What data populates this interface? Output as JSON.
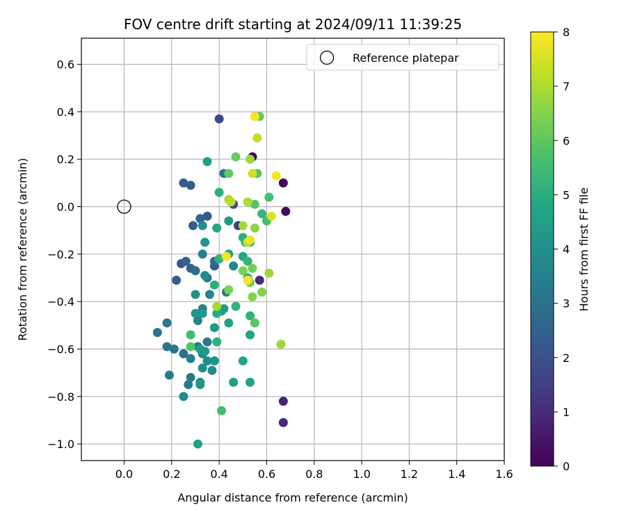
{
  "chart_data": {
    "type": "scatter",
    "title": "FOV centre drift starting at 2024/09/11 11:39:25",
    "xlabel": "Angular distance from reference (arcmin)",
    "ylabel": "Rotation from reference (arcmin)",
    "xlim": [
      -0.18,
      1.6
    ],
    "ylim": [
      -1.07,
      0.71
    ],
    "x_ticks": [
      "0.0",
      "0.2",
      "0.4",
      "0.6",
      "0.8",
      "1.0",
      "1.2",
      "1.4",
      "1.6"
    ],
    "y_ticks": [
      "0.6",
      "0.4",
      "0.2",
      "0.0",
      "−0.2",
      "−0.4",
      "−0.6",
      "−0.8",
      "−1.0"
    ],
    "grid": true,
    "legend": {
      "placement": "upper right",
      "entries": [
        "Reference platepar"
      ]
    },
    "reference_point": {
      "x": 0.0,
      "y": 0.0
    },
    "colorbar": {
      "label": "Hours from first FF file",
      "colormap": "viridis",
      "range": [
        0,
        8
      ],
      "ticks": [
        "0",
        "1",
        "2",
        "3",
        "4",
        "5",
        "6",
        "7",
        "8"
      ]
    },
    "points": [
      {
        "x": 0.54,
        "y": 0.21,
        "c": 0.1
      },
      {
        "x": 0.67,
        "y": 0.1,
        "c": 0.1
      },
      {
        "x": 0.68,
        "y": -0.02,
        "c": 0.2
      },
      {
        "x": 0.67,
        "y": -0.82,
        "c": 0.8
      },
      {
        "x": 0.67,
        "y": -0.91,
        "c": 0.9
      },
      {
        "x": 0.57,
        "y": -0.31,
        "c": 1.0
      },
      {
        "x": 0.4,
        "y": 0.37,
        "c": 1.8
      },
      {
        "x": 0.46,
        "y": 0.01,
        "c": 1.8
      },
      {
        "x": 0.48,
        "y": -0.08,
        "c": 1.5
      },
      {
        "x": 0.25,
        "y": 0.1,
        "c": 2.3
      },
      {
        "x": 0.28,
        "y": 0.09,
        "c": 2.4
      },
      {
        "x": 0.35,
        "y": -0.04,
        "c": 2.2
      },
      {
        "x": 0.29,
        "y": -0.08,
        "c": 2.3
      },
      {
        "x": 0.32,
        "y": -0.05,
        "c": 2.6
      },
      {
        "x": 0.24,
        "y": -0.24,
        "c": 2.2
      },
      {
        "x": 0.26,
        "y": -0.23,
        "c": 2.5
      },
      {
        "x": 0.28,
        "y": -0.26,
        "c": 2.6
      },
      {
        "x": 0.22,
        "y": -0.31,
        "c": 2.5
      },
      {
        "x": 0.3,
        "y": -0.27,
        "c": 2.8
      },
      {
        "x": 0.38,
        "y": -0.25,
        "c": 2.4
      },
      {
        "x": 0.38,
        "y": -0.23,
        "c": 2.9
      },
      {
        "x": 0.4,
        "y": -0.22,
        "c": 2.6
      },
      {
        "x": 0.42,
        "y": 0.14,
        "c": 3.1
      },
      {
        "x": 0.14,
        "y": -0.53,
        "c": 3.0
      },
      {
        "x": 0.18,
        "y": -0.49,
        "c": 3.2
      },
      {
        "x": 0.18,
        "y": -0.59,
        "c": 3.0
      },
      {
        "x": 0.21,
        "y": -0.6,
        "c": 3.1
      },
      {
        "x": 0.25,
        "y": -0.62,
        "c": 3.0
      },
      {
        "x": 0.19,
        "y": -0.71,
        "c": 3.3
      },
      {
        "x": 0.28,
        "y": -0.64,
        "c": 3.4
      },
      {
        "x": 0.28,
        "y": -0.72,
        "c": 3.3
      },
      {
        "x": 0.27,
        "y": -0.75,
        "c": 3.2
      },
      {
        "x": 0.25,
        "y": -0.8,
        "c": 3.7
      },
      {
        "x": 0.31,
        "y": -0.59,
        "c": 3.2
      },
      {
        "x": 0.35,
        "y": -0.57,
        "c": 3.3
      },
      {
        "x": 0.35,
        "y": -0.3,
        "c": 3.2
      },
      {
        "x": 0.33,
        "y": -0.2,
        "c": 3.5
      },
      {
        "x": 0.31,
        "y": -0.48,
        "c": 3.6
      },
      {
        "x": 0.33,
        "y": -0.43,
        "c": 3.5
      },
      {
        "x": 0.36,
        "y": -0.37,
        "c": 3.6
      },
      {
        "x": 0.34,
        "y": -0.29,
        "c": 3.8
      },
      {
        "x": 0.43,
        "y": -0.36,
        "c": 3.5
      },
      {
        "x": 0.46,
        "y": -0.25,
        "c": 3.7
      },
      {
        "x": 0.33,
        "y": -0.62,
        "c": 3.8
      },
      {
        "x": 0.33,
        "y": -0.68,
        "c": 3.9
      },
      {
        "x": 0.35,
        "y": -0.65,
        "c": 4.0
      },
      {
        "x": 0.37,
        "y": -0.69,
        "c": 3.9
      },
      {
        "x": 0.32,
        "y": -0.74,
        "c": 4.0
      },
      {
        "x": 0.32,
        "y": -0.75,
        "c": 4.2
      },
      {
        "x": 0.38,
        "y": -0.65,
        "c": 4.1
      },
      {
        "x": 0.33,
        "y": -0.08,
        "c": 3.9
      },
      {
        "x": 0.34,
        "y": -0.15,
        "c": 4.2
      },
      {
        "x": 0.3,
        "y": -0.37,
        "c": 4.1
      },
      {
        "x": 0.3,
        "y": -0.45,
        "c": 4.2
      },
      {
        "x": 0.33,
        "y": -0.45,
        "c": 4.3
      },
      {
        "x": 0.38,
        "y": -0.51,
        "c": 4.3
      },
      {
        "x": 0.41,
        "y": -0.44,
        "c": 4.4
      },
      {
        "x": 0.44,
        "y": -0.49,
        "c": 4.6
      },
      {
        "x": 0.42,
        "y": -0.43,
        "c": 4.5
      },
      {
        "x": 0.44,
        "y": -0.2,
        "c": 4.6
      },
      {
        "x": 0.44,
        "y": -0.06,
        "c": 4.4
      },
      {
        "x": 0.39,
        "y": -0.09,
        "c": 4.8
      },
      {
        "x": 0.35,
        "y": 0.19,
        "c": 4.6
      },
      {
        "x": 0.32,
        "y": -0.6,
        "c": 4.4
      },
      {
        "x": 0.34,
        "y": -0.61,
        "c": 4.2
      },
      {
        "x": 0.31,
        "y": -1.0,
        "c": 4.6
      },
      {
        "x": 0.46,
        "y": -0.74,
        "c": 4.5
      },
      {
        "x": 0.53,
        "y": -0.74,
        "c": 4.6
      },
      {
        "x": 0.5,
        "y": -0.65,
        "c": 4.7
      },
      {
        "x": 0.53,
        "y": -0.54,
        "c": 4.7
      },
      {
        "x": 0.39,
        "y": -0.45,
        "c": 4.9
      },
      {
        "x": 0.39,
        "y": -0.57,
        "c": 5.1
      },
      {
        "x": 0.38,
        "y": -0.33,
        "c": 5.0
      },
      {
        "x": 0.4,
        "y": -0.22,
        "c": 5.2
      },
      {
        "x": 0.4,
        "y": 0.06,
        "c": 5.1
      },
      {
        "x": 0.5,
        "y": -0.21,
        "c": 4.8
      },
      {
        "x": 0.52,
        "y": -0.23,
        "c": 5.3
      },
      {
        "x": 0.52,
        "y": -0.3,
        "c": 5.0
      },
      {
        "x": 0.53,
        "y": -0.46,
        "c": 5.2
      },
      {
        "x": 0.47,
        "y": -0.42,
        "c": 5.2
      },
      {
        "x": 0.5,
        "y": -0.13,
        "c": 5.0
      },
      {
        "x": 0.51,
        "y": -0.15,
        "c": 5.4
      },
      {
        "x": 0.53,
        "y": -0.15,
        "c": 5.1
      },
      {
        "x": 0.58,
        "y": -0.03,
        "c": 5.3
      },
      {
        "x": 0.6,
        "y": -0.06,
        "c": 5.6
      },
      {
        "x": 0.61,
        "y": 0.04,
        "c": 5.6
      },
      {
        "x": 0.41,
        "y": -0.86,
        "c": 5.4
      },
      {
        "x": 0.41,
        "y": -0.86,
        "c": 5.6
      },
      {
        "x": 0.28,
        "y": -0.54,
        "c": 5.5
      },
      {
        "x": 0.28,
        "y": -0.59,
        "c": 5.8
      },
      {
        "x": 0.55,
        "y": -0.49,
        "c": 5.9
      },
      {
        "x": 0.55,
        "y": 0.01,
        "c": 5.9
      },
      {
        "x": 0.56,
        "y": 0.14,
        "c": 5.8
      },
      {
        "x": 0.57,
        "y": 0.38,
        "c": 6.0
      },
      {
        "x": 0.44,
        "y": 0.14,
        "c": 6.0
      },
      {
        "x": 0.47,
        "y": 0.21,
        "c": 6.1
      },
      {
        "x": 0.53,
        "y": -0.32,
        "c": 6.3
      },
      {
        "x": 0.54,
        "y": -0.26,
        "c": 6.3
      },
      {
        "x": 0.58,
        "y": -0.36,
        "c": 6.5
      },
      {
        "x": 0.54,
        "y": -0.38,
        "c": 6.5
      },
      {
        "x": 0.5,
        "y": -0.27,
        "c": 6.4
      },
      {
        "x": 0.44,
        "y": -0.35,
        "c": 6.4
      },
      {
        "x": 0.55,
        "y": -0.09,
        "c": 6.6
      },
      {
        "x": 0.61,
        "y": -0.28,
        "c": 6.8
      },
      {
        "x": 0.66,
        "y": -0.58,
        "c": 6.8
      },
      {
        "x": 0.39,
        "y": -0.42,
        "c": 6.9
      },
      {
        "x": 0.5,
        "y": -0.08,
        "c": 6.9
      },
      {
        "x": 0.53,
        "y": 0.2,
        "c": 6.8
      },
      {
        "x": 0.52,
        "y": 0.02,
        "c": 7.0
      },
      {
        "x": 0.44,
        "y": 0.03,
        "c": 7.0
      },
      {
        "x": 0.45,
        "y": 0.02,
        "c": 7.2
      },
      {
        "x": 0.56,
        "y": 0.29,
        "c": 7.2
      },
      {
        "x": 0.54,
        "y": 0.14,
        "c": 7.4
      },
      {
        "x": 0.52,
        "y": -0.15,
        "c": 7.2
      },
      {
        "x": 0.62,
        "y": -0.04,
        "c": 7.6
      },
      {
        "x": 0.53,
        "y": -0.14,
        "c": 7.8
      },
      {
        "x": 0.43,
        "y": -0.21,
        "c": 7.9
      },
      {
        "x": 0.52,
        "y": -0.31,
        "c": 7.9
      },
      {
        "x": 0.55,
        "y": 0.38,
        "c": 7.9
      },
      {
        "x": 0.64,
        "y": 0.13,
        "c": 7.9
      }
    ]
  }
}
